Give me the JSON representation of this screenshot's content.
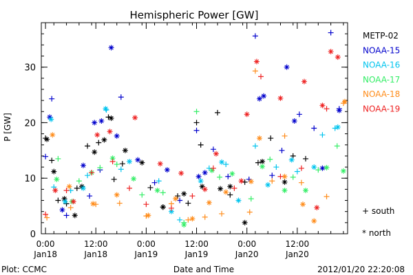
{
  "chart_data": {
    "type": "scatter",
    "title": "Hemispheric Power [GW]",
    "ylabel": "P [GW]",
    "xlabel": "Date and Time",
    "ylim": [
      0,
      38
    ],
    "xlim": [
      "2012-01-17T23:00",
      "2012-01-21T00:00"
    ],
    "yticks": [
      0,
      10,
      20,
      30
    ],
    "xticks": [
      {
        "t": "2012-01-18T00:00",
        "line1": "0:00",
        "line2": "Jan18"
      },
      {
        "t": "2012-01-18T12:00",
        "line1": "12:00",
        "line2": "Jan18"
      },
      {
        "t": "2012-01-19T00:00",
        "line1": "0:00",
        "line2": "Jan19"
      },
      {
        "t": "2012-01-19T12:00",
        "line1": "12:00",
        "line2": "Jan19"
      },
      {
        "t": "2012-01-20T00:00",
        "line1": "0:00",
        "line2": "Jan20"
      },
      {
        "t": "2012-01-20T12:00",
        "line1": "12:00",
        "line2": "Jan20"
      }
    ],
    "legend_markers": {
      "south": "+ south",
      "north": "* north"
    },
    "series": [
      {
        "name": "METP-02",
        "color": "#000000",
        "south": [
          [
            "2012-01-18T00:00",
            17.2
          ],
          [
            "2012-01-18T01:30",
            13.2
          ],
          [
            "2012-01-18T03:00",
            6.0
          ],
          [
            "2012-01-18T05:00",
            5.4
          ],
          [
            "2012-01-18T07:30",
            8.2
          ],
          [
            "2012-01-18T10:00",
            15.8
          ],
          [
            "2012-01-18T12:40",
            16.4
          ],
          [
            "2012-01-18T15:00",
            21.0
          ],
          [
            "2012-01-18T16:20",
            9.8
          ],
          [
            "2012-01-18T18:20",
            12.6
          ],
          [
            "2012-01-19T01:00",
            8.3
          ],
          [
            "2012-01-19T04:00",
            4.8
          ],
          [
            "2012-01-19T07:30",
            6.8
          ],
          [
            "2012-01-19T10:00",
            5.5
          ],
          [
            "2012-01-19T12:00",
            20.0
          ],
          [
            "2012-01-19T13:00",
            16.0
          ],
          [
            "2012-01-19T17:00",
            21.8
          ],
          [
            "2012-01-19T20:00",
            7.0
          ],
          [
            "2012-01-19T23:30",
            9.3
          ],
          [
            "2012-01-20T02:40",
            12.8
          ],
          [
            "2012-01-20T05:40",
            17.2
          ],
          [
            "2012-01-20T11:00",
            14.0
          ],
          [
            "2012-01-20T14:00",
            13.5
          ]
        ],
        "north": [
          [
            "2012-01-18T00:20",
            17.0
          ],
          [
            "2012-01-18T02:00",
            11.2
          ],
          [
            "2012-01-18T04:30",
            6.3
          ],
          [
            "2012-01-18T07:00",
            3.3
          ],
          [
            "2012-01-18T08:40",
            8.5
          ],
          [
            "2012-01-18T11:40",
            14.7
          ],
          [
            "2012-01-18T14:00",
            16.9
          ],
          [
            "2012-01-18T15:40",
            20.8
          ],
          [
            "2012-01-18T19:00",
            15.0
          ],
          [
            "2012-01-18T23:00",
            12.8
          ],
          [
            "2012-01-19T04:00",
            4.8
          ],
          [
            "2012-01-19T09:00",
            7.2
          ],
          [
            "2012-01-19T13:20",
            8.5
          ],
          [
            "2012-01-19T17:40",
            8.1
          ],
          [
            "2012-01-19T20:00",
            8.5
          ],
          [
            "2012-01-19T23:30",
            2.0
          ],
          [
            "2012-01-20T03:40",
            13.0
          ],
          [
            "2012-01-20T09:00",
            9.3
          ]
        ]
      },
      {
        "name": "NOAA-15",
        "color": "#0000cc",
        "south": [
          [
            "2012-01-18T00:00",
            13.9
          ],
          [
            "2012-01-18T01:30",
            24.3
          ],
          [
            "2012-01-18T05:00",
            3.3
          ],
          [
            "2012-01-18T10:30",
            6.8
          ],
          [
            "2012-01-18T13:00",
            11.5
          ],
          [
            "2012-01-18T18:00",
            24.6
          ],
          [
            "2012-01-19T02:00",
            9.2
          ],
          [
            "2012-01-19T08:00",
            6.0
          ],
          [
            "2012-01-19T12:00",
            18.6
          ],
          [
            "2012-01-19T16:00",
            15.2
          ],
          [
            "2012-01-19T19:30",
            10.3
          ],
          [
            "2012-01-20T00:30",
            9.8
          ],
          [
            "2012-01-20T02:00",
            35.6
          ],
          [
            "2012-01-20T06:00",
            10.5
          ],
          [
            "2012-01-20T08:20",
            15.0
          ],
          [
            "2012-01-20T12:30",
            21.5
          ],
          [
            "2012-01-20T16:00",
            19.0
          ],
          [
            "2012-01-20T20:00",
            36.2
          ],
          [
            "2012-01-20T22:00",
            22.5
          ]
        ],
        "north": [
          [
            "2012-01-18T01:00",
            21.0
          ],
          [
            "2012-01-18T04:00",
            4.3
          ],
          [
            "2012-01-18T09:00",
            12.3
          ],
          [
            "2012-01-18T11:40",
            20.0
          ],
          [
            "2012-01-18T13:20",
            20.3
          ],
          [
            "2012-01-18T15:40",
            33.5
          ],
          [
            "2012-01-18T17:00",
            17.6
          ],
          [
            "2012-01-18T22:00",
            13.3
          ],
          [
            "2012-01-19T05:00",
            11.5
          ],
          [
            "2012-01-19T12:30",
            10.3
          ],
          [
            "2012-01-19T14:00",
            11.0
          ],
          [
            "2012-01-20T03:00",
            24.3
          ],
          [
            "2012-01-20T04:00",
            24.8
          ],
          [
            "2012-01-20T09:30",
            30.0
          ],
          [
            "2012-01-20T11:20",
            20.3
          ],
          [
            "2012-01-20T18:00",
            11.8
          ],
          [
            "2012-01-20T22:00",
            22.2
          ]
        ]
      },
      {
        "name": "NOAA-16",
        "color": "#00c4ee",
        "south": [
          [
            "2012-01-18T02:00",
            8.4
          ],
          [
            "2012-01-18T06:00",
            7.8
          ],
          [
            "2012-01-18T10:00",
            10.5
          ],
          [
            "2012-01-18T14:30",
            22.3
          ],
          [
            "2012-01-18T18:00",
            11.6
          ],
          [
            "2012-01-19T03:00",
            9.5
          ],
          [
            "2012-01-19T08:00",
            2.5
          ],
          [
            "2012-01-19T15:00",
            11.8
          ],
          [
            "2012-01-19T19:00",
            12.5
          ],
          [
            "2012-01-20T02:00",
            15.8
          ],
          [
            "2012-01-20T07:00",
            12.0
          ],
          [
            "2012-01-20T12:00",
            11.2
          ],
          [
            "2012-01-20T18:00",
            17.8
          ],
          [
            "2012-01-20T21:00",
            19.0
          ]
        ],
        "north": [
          [
            "2012-01-18T01:20",
            20.6
          ],
          [
            "2012-01-18T04:40",
            5.8
          ],
          [
            "2012-01-18T09:00",
            8.2
          ],
          [
            "2012-01-18T14:20",
            22.5
          ],
          [
            "2012-01-18T20:00",
            13.0
          ],
          [
            "2012-01-19T06:00",
            4.0
          ],
          [
            "2012-01-19T13:00",
            9.5
          ],
          [
            "2012-01-19T18:00",
            12.9
          ],
          [
            "2012-01-19T22:00",
            6.0
          ],
          [
            "2012-01-20T05:00",
            8.8
          ],
          [
            "2012-01-20T10:40",
            13.3
          ],
          [
            "2012-01-20T16:00",
            12.0
          ],
          [
            "2012-01-20T21:40",
            19.2
          ]
        ]
      },
      {
        "name": "NOAA-17",
        "color": "#33ee66",
        "south": [
          [
            "2012-01-18T03:00",
            13.5
          ],
          [
            "2012-01-18T08:00",
            9.5
          ],
          [
            "2012-01-18T13:00",
            11.9
          ],
          [
            "2012-01-18T17:00",
            12.5
          ],
          [
            "2012-01-18T23:00",
            7.0
          ],
          [
            "2012-01-19T04:00",
            7.4
          ],
          [
            "2012-01-19T09:00",
            2.0
          ],
          [
            "2012-01-19T12:00",
            22.0
          ],
          [
            "2012-01-19T17:30",
            10.2
          ],
          [
            "2012-01-20T01:00",
            6.3
          ],
          [
            "2012-01-20T05:30",
            13.4
          ],
          [
            "2012-01-20T11:00",
            10.2
          ],
          [
            "2012-01-20T17:00",
            11.5
          ],
          [
            "2012-01-20T21:30",
            15.8
          ]
        ],
        "north": [
          [
            "2012-01-18T02:40",
            9.8
          ],
          [
            "2012-01-18T06:20",
            5.8
          ],
          [
            "2012-01-18T11:00",
            11.0
          ],
          [
            "2012-01-18T16:00",
            13.6
          ],
          [
            "2012-01-18T21:00",
            9.9
          ],
          [
            "2012-01-19T02:40",
            7.8
          ],
          [
            "2012-01-19T09:00",
            1.6
          ],
          [
            "2012-01-19T15:40",
            11.4
          ],
          [
            "2012-01-19T20:30",
            10.8
          ],
          [
            "2012-01-20T03:40",
            12.1
          ],
          [
            "2012-01-20T09:00",
            7.8
          ],
          [
            "2012-01-20T14:00",
            7.8
          ],
          [
            "2012-01-20T19:00",
            11.9
          ],
          [
            "2012-01-20T23:00",
            11.3
          ]
        ]
      },
      {
        "name": "NOAA-18",
        "color": "#ff8c1a",
        "south": [
          [
            "2012-01-18T00:20",
            2.9
          ],
          [
            "2012-01-18T06:00",
            4.7
          ],
          [
            "2012-01-18T12:00",
            5.3
          ],
          [
            "2012-01-18T17:40",
            5.5
          ],
          [
            "2012-01-19T00:00",
            3.2
          ],
          [
            "2012-01-19T06:00",
            5.4
          ],
          [
            "2012-01-19T10:00",
            2.5
          ],
          [
            "2012-01-19T14:00",
            3.0
          ],
          [
            "2012-01-19T18:00",
            3.6
          ],
          [
            "2012-01-20T00:40",
            3.9
          ],
          [
            "2012-01-20T02:00",
            29.3
          ],
          [
            "2012-01-20T06:00",
            9.5
          ],
          [
            "2012-01-20T09:00",
            17.6
          ],
          [
            "2012-01-20T13:00",
            9.2
          ],
          [
            "2012-01-20T19:00",
            6.7
          ],
          [
            "2012-01-20T23:00",
            23.5
          ]
        ],
        "north": [
          [
            "2012-01-18T01:40",
            17.8
          ],
          [
            "2012-01-18T05:40",
            8.5
          ],
          [
            "2012-01-18T11:20",
            5.4
          ],
          [
            "2012-01-18T17:00",
            7.0
          ],
          [
            "2012-01-19T00:30",
            3.3
          ],
          [
            "2012-01-19T07:00",
            6.3
          ],
          [
            "2012-01-19T11:00",
            2.7
          ],
          [
            "2012-01-19T15:00",
            5.6
          ],
          [
            "2012-01-19T19:00",
            7.5
          ],
          [
            "2012-01-20T01:00",
            9.4
          ],
          [
            "2012-01-20T03:00",
            17.2
          ],
          [
            "2012-01-20T09:00",
            10.3
          ],
          [
            "2012-01-20T13:20",
            5.3
          ],
          [
            "2012-01-20T16:00",
            2.3
          ],
          [
            "2012-01-20T23:20",
            23.8
          ]
        ]
      },
      {
        "name": "NOAA-19",
        "color": "#ee2222",
        "south": [
          [
            "2012-01-18T00:00",
            3.5
          ],
          [
            "2012-01-18T05:00",
            7.8
          ],
          [
            "2012-01-18T11:00",
            11.0
          ],
          [
            "2012-01-18T16:00",
            13.0
          ],
          [
            "2012-01-18T20:00",
            8.2
          ],
          [
            "2012-01-19T00:00",
            5.3
          ],
          [
            "2012-01-19T06:00",
            4.6
          ],
          [
            "2012-01-19T11:00",
            6.8
          ],
          [
            "2012-01-19T16:00",
            11.8
          ],
          [
            "2012-01-19T21:00",
            8.2
          ],
          [
            "2012-01-20T03:20",
            28.3
          ],
          [
            "2012-01-20T08:00",
            10.3
          ],
          [
            "2012-01-20T13:00",
            11.8
          ],
          [
            "2012-01-20T19:00",
            22.5
          ]
        ],
        "north": [
          [
            "2012-01-18T02:20",
            7.8
          ],
          [
            "2012-01-18T06:40",
            5.8
          ],
          [
            "2012-01-18T12:20",
            17.8
          ],
          [
            "2012-01-18T15:20",
            18.4
          ],
          [
            "2012-01-18T21:20",
            20.9
          ],
          [
            "2012-01-19T03:20",
            12.6
          ],
          [
            "2012-01-19T08:20",
            10.9
          ],
          [
            "2012-01-19T14:00",
            8.0
          ],
          [
            "2012-01-19T16:40",
            14.4
          ],
          [
            "2012-01-19T22:40",
            9.5
          ],
          [
            "2012-01-20T00:00",
            21.5
          ],
          [
            "2012-01-20T02:20",
            31.0
          ],
          [
            "2012-01-20T08:00",
            24.4
          ],
          [
            "2012-01-20T13:40",
            27.4
          ],
          [
            "2012-01-20T18:00",
            23.1
          ],
          [
            "2012-01-20T20:00",
            32.8
          ],
          [
            "2012-01-20T21:40",
            31.8
          ],
          [
            "2012-01-20T16:40",
            4.7
          ]
        ]
      }
    ]
  },
  "footer": {
    "left": "Plot: CCMC",
    "right": "2012/01/20 22:20:08"
  }
}
